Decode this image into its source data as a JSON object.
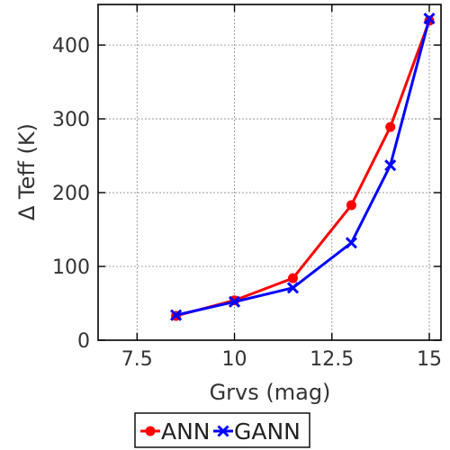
{
  "chart_data": {
    "type": "line",
    "xlabel": "Grvs (mag)",
    "ylabel": "Δ Teff (K)",
    "xlim": [
      6.5,
      15.3
    ],
    "ylim": [
      0,
      455
    ],
    "x_ticks": [
      7.5,
      10,
      12.5,
      15
    ],
    "x_tick_labels": [
      "7.5",
      "10",
      "12.5",
      "15"
    ],
    "y_ticks": [
      0,
      100,
      200,
      300,
      400
    ],
    "y_tick_labels": [
      "0",
      "100",
      "200",
      "300",
      "400"
    ],
    "grid": true,
    "legend_position": "bottom-center, outside plot",
    "series": [
      {
        "name": "ANN",
        "color": "#ff0000",
        "marker": "circle",
        "x": [
          8.5,
          10,
          11.5,
          13,
          14,
          15
        ],
        "y": [
          33,
          54,
          84,
          183,
          289,
          433
        ]
      },
      {
        "name": "GANN",
        "color": "#0000ff",
        "marker": "x",
        "x": [
          8.5,
          10,
          11.5,
          13,
          14,
          15
        ],
        "y": [
          34,
          52,
          71,
          132,
          237,
          436
        ]
      }
    ]
  }
}
